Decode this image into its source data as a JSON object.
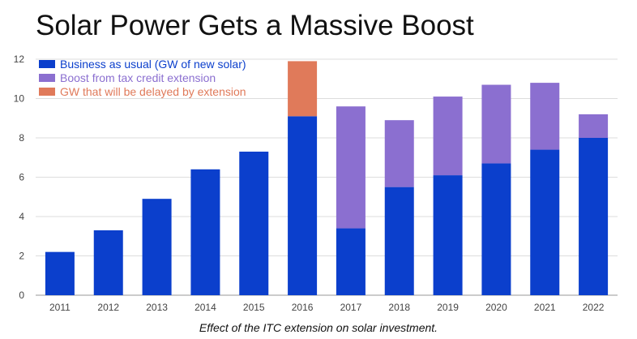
{
  "title": "Solar Power Gets a Massive Boost",
  "caption": "Effect of the ITC extension on solar investment.",
  "chart_data": {
    "type": "bar",
    "stacked": true,
    "categories": [
      "2011",
      "2012",
      "2013",
      "2014",
      "2015",
      "2016",
      "2017",
      "2018",
      "2019",
      "2020",
      "2021",
      "2022"
    ],
    "series": [
      {
        "name": "Business as usual (GW of new solar)",
        "color": "#0b3fcc",
        "values": [
          2.2,
          3.3,
          4.9,
          6.4,
          7.3,
          9.1,
          3.4,
          5.5,
          6.1,
          6.7,
          7.4,
          8.0
        ]
      },
      {
        "name": "Boost from tax credit extension",
        "color": "#8b6fd0",
        "values": [
          0,
          0,
          0,
          0,
          0,
          0,
          6.2,
          3.4,
          4.0,
          4.0,
          3.4,
          1.2
        ]
      },
      {
        "name": "GW that will be delayed by extension",
        "color": "#e07a5a",
        "values": [
          0,
          0,
          0,
          0,
          0,
          2.8,
          0,
          0,
          0,
          0,
          0,
          0
        ]
      }
    ],
    "yticks": [
      0,
      2,
      4,
      6,
      8,
      10,
      12
    ],
    "ylim": [
      0,
      12
    ],
    "grid": true,
    "legend": "top-left"
  }
}
